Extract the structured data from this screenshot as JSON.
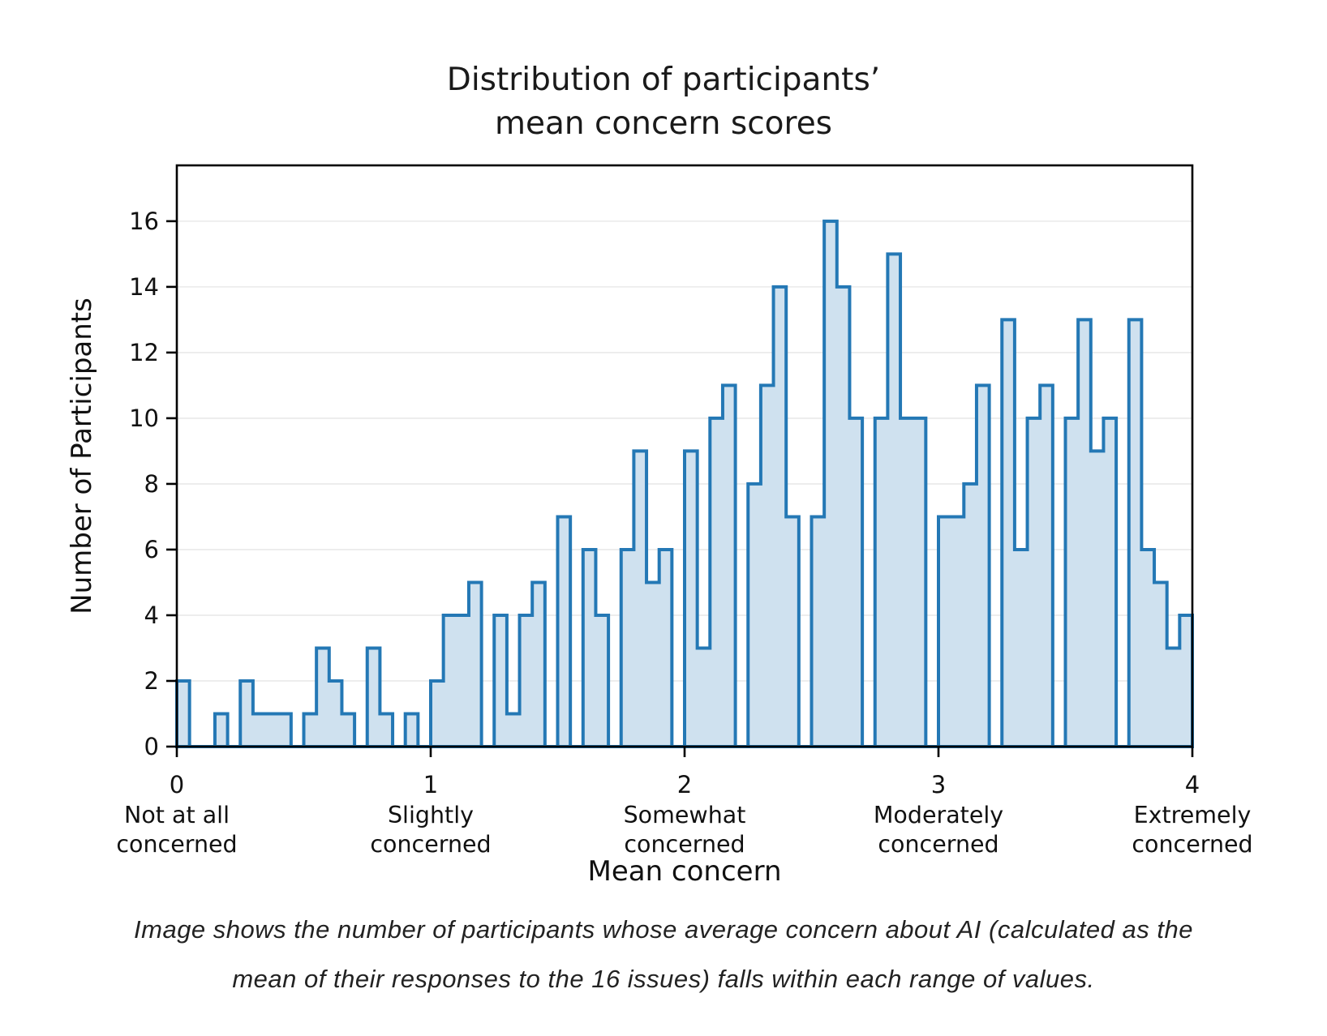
{
  "title": "Distribution of participants’\nmean concern scores",
  "caption": "Image shows the number of participants whose average concern about AI (calculated as the\nmean of their responses to the 16 issues) falls within each range of values.",
  "chart_data": {
    "type": "histogram",
    "title": "Distribution of participants’ mean concern scores",
    "xlabel": "Mean concern",
    "ylabel": "Number of Participants",
    "bin_start": 0,
    "bin_width": 0.05,
    "counts": [
      2,
      0,
      0,
      1,
      0,
      2,
      1,
      1,
      1,
      0,
      1,
      3,
      2,
      1,
      0,
      3,
      1,
      0,
      1,
      0,
      2,
      4,
      4,
      5,
      0,
      4,
      1,
      4,
      5,
      0,
      7,
      0,
      6,
      4,
      0,
      6,
      9,
      5,
      6,
      0,
      9,
      3,
      10,
      11,
      0,
      8,
      11,
      14,
      7,
      0,
      7,
      16,
      14,
      10,
      0,
      10,
      15,
      10,
      10,
      0,
      7,
      7,
      8,
      11,
      0,
      13,
      6,
      10,
      11,
      0,
      10,
      13,
      9,
      10,
      0,
      13,
      6,
      5,
      3,
      4
    ],
    "xlim": [
      0,
      4
    ],
    "ylim": [
      0,
      17.7
    ],
    "yticks": [
      0,
      2,
      4,
      6,
      8,
      10,
      12,
      14,
      16
    ],
    "xticks": [
      {
        "value": 0,
        "label": "Not at all\nconcerned"
      },
      {
        "value": 1,
        "label": "Slightly\nconcerned"
      },
      {
        "value": 2,
        "label": "Somewhat\nconcerned"
      },
      {
        "value": 3,
        "label": "Moderately\nconcerned"
      },
      {
        "value": 4,
        "label": "Extremely\nconcerned"
      }
    ],
    "grid": "horizontal lines at even y ticks",
    "legend": "none",
    "colors": {
      "bar_fill": "#cfe1ef",
      "bar_edge": "#2478b5",
      "grid": "#e9e9e9",
      "axis": "#000000",
      "text": "#111111"
    }
  }
}
